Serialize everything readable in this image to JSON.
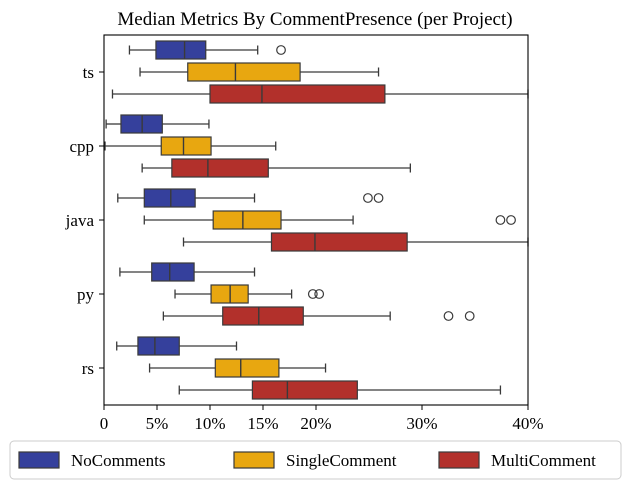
{
  "chart_data": {
    "type": "boxplot-horizontal",
    "title": "Median Metrics By CommentPresence (per Project)",
    "xlabel": "",
    "ylabel": "",
    "xlim": [
      0,
      40
    ],
    "xticks": [
      0,
      5,
      10,
      15,
      20,
      30,
      40
    ],
    "xtick_labels": [
      "0",
      "5%",
      "10%",
      "15%",
      "20%",
      "30%",
      "40%"
    ],
    "categories": [
      "ts",
      "cpp",
      "java",
      "py",
      "rs"
    ],
    "legend_position": "bottom",
    "series": [
      {
        "name": "NoComments",
        "color": "#35409c",
        "boxes": [
          {
            "category": "ts",
            "whislo": 2.4,
            "q1": 4.9,
            "med": 7.6,
            "q3": 9.6,
            "whishi": 14.5,
            "fliers": [
              16.7
            ]
          },
          {
            "category": "cpp",
            "whislo": 0.2,
            "q1": 1.6,
            "med": 3.6,
            "q3": 5.5,
            "whishi": 9.9,
            "fliers": []
          },
          {
            "category": "java",
            "whislo": 1.3,
            "q1": 3.8,
            "med": 6.3,
            "q3": 8.6,
            "whishi": 14.2,
            "fliers": [
              24.9,
              25.9
            ]
          },
          {
            "category": "py",
            "whislo": 1.5,
            "q1": 4.5,
            "med": 6.2,
            "q3": 8.5,
            "whishi": 14.2,
            "fliers": []
          },
          {
            "category": "rs",
            "whislo": 1.2,
            "q1": 3.2,
            "med": 4.8,
            "q3": 7.1,
            "whishi": 12.5,
            "fliers": []
          }
        ]
      },
      {
        "name": "SingleComment",
        "color": "#e8a710",
        "boxes": [
          {
            "category": "ts",
            "whislo": 3.4,
            "q1": 7.9,
            "med": 12.4,
            "q3": 18.5,
            "whishi": 25.9,
            "fliers": []
          },
          {
            "category": "cpp",
            "whislo": 0.1,
            "q1": 5.4,
            "med": 7.5,
            "q3": 10.1,
            "whishi": 16.2,
            "fliers": []
          },
          {
            "category": "java",
            "whislo": 3.8,
            "q1": 10.3,
            "med": 13.1,
            "q3": 16.7,
            "whishi": 23.5,
            "fliers": [
              37.4,
              38.4
            ]
          },
          {
            "category": "py",
            "whislo": 6.7,
            "q1": 10.1,
            "med": 11.9,
            "q3": 13.6,
            "whishi": 17.7,
            "fliers": [
              19.7,
              20.3
            ]
          },
          {
            "category": "rs",
            "whislo": 4.3,
            "q1": 10.5,
            "med": 12.9,
            "q3": 16.5,
            "whishi": 20.9,
            "fliers": []
          }
        ]
      },
      {
        "name": "MultiComment",
        "color": "#b2302b",
        "boxes": [
          {
            "category": "ts",
            "whislo": 0.8,
            "q1": 10.0,
            "med": 14.9,
            "q3": 26.5,
            "whishi": 40.0,
            "fliers": []
          },
          {
            "category": "cpp",
            "whislo": 3.6,
            "q1": 6.4,
            "med": 9.8,
            "q3": 15.5,
            "whishi": 28.9,
            "fliers": []
          },
          {
            "category": "java",
            "whislo": 7.5,
            "q1": 15.8,
            "med": 19.9,
            "q3": 28.6,
            "whishi": 40.0,
            "fliers": []
          },
          {
            "category": "py",
            "whislo": 5.6,
            "q1": 11.2,
            "med": 14.6,
            "q3": 18.8,
            "whishi": 27.0,
            "fliers": [
              32.5,
              34.5
            ]
          },
          {
            "category": "rs",
            "whislo": 7.1,
            "q1": 14.0,
            "med": 17.3,
            "q3": 23.9,
            "whishi": 37.4,
            "fliers": []
          }
        ]
      }
    ]
  }
}
